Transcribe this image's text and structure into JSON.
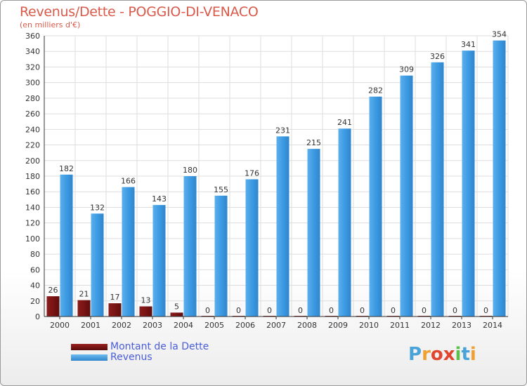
{
  "header": {
    "title": "Revenus/Dette - POGGIO-DI-VENACO",
    "subtitle": "(en milliers d'€)"
  },
  "legend": {
    "debt_label": "Montant de la Dette",
    "revenue_label": "Revenus"
  },
  "logo": {
    "letters": [
      "P",
      "r",
      "o",
      "x",
      "i",
      "t",
      "i"
    ],
    "colors": [
      "#4aa3d8",
      "#f0a030",
      "#e0452f",
      "#e0452f",
      "#5bbf4a",
      "#4aa3d8",
      "#f0a030"
    ]
  },
  "colors": {
    "debt": "#7a1414",
    "revenue": "#3a98e0",
    "grid": "#dddddd",
    "axis": "#333333"
  },
  "chart_data": {
    "type": "bar",
    "categories": [
      "2000",
      "2001",
      "2002",
      "2003",
      "2004",
      "2005",
      "2006",
      "2007",
      "2008",
      "2009",
      "2010",
      "2011",
      "2012",
      "2013",
      "2014"
    ],
    "series": [
      {
        "name": "Montant de la Dette",
        "values": [
          26,
          21,
          17,
          13,
          5,
          0,
          0,
          0,
          0,
          0,
          0,
          0,
          0,
          0,
          0
        ]
      },
      {
        "name": "Revenus",
        "values": [
          182,
          132,
          166,
          143,
          180,
          155,
          176,
          231,
          215,
          241,
          282,
          309,
          326,
          341,
          354
        ]
      }
    ],
    "title": "Revenus/Dette - POGGIO-DI-VENACO",
    "ylabel": "(en milliers d'€)",
    "ylim": [
      0,
      360
    ],
    "yticks": [
      0,
      20,
      40,
      60,
      80,
      100,
      120,
      140,
      160,
      180,
      200,
      220,
      240,
      260,
      280,
      300,
      320,
      340,
      360
    ],
    "grid": true,
    "legend_position": "bottom-left"
  }
}
